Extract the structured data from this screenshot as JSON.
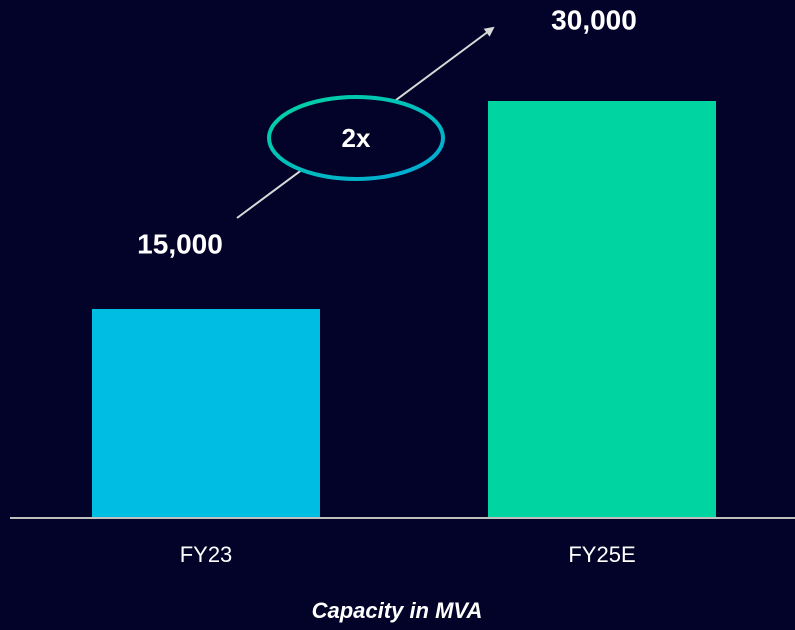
{
  "chart_data": {
    "type": "bar",
    "categories": [
      "FY23",
      "FY25E"
    ],
    "values": [
      15000,
      30000
    ],
    "value_labels": [
      "15,000",
      "30,000"
    ],
    "colors": [
      "#00bde3",
      "#00d4a0"
    ],
    "annotation": "2x",
    "x_label": "Capacity in MVA"
  }
}
